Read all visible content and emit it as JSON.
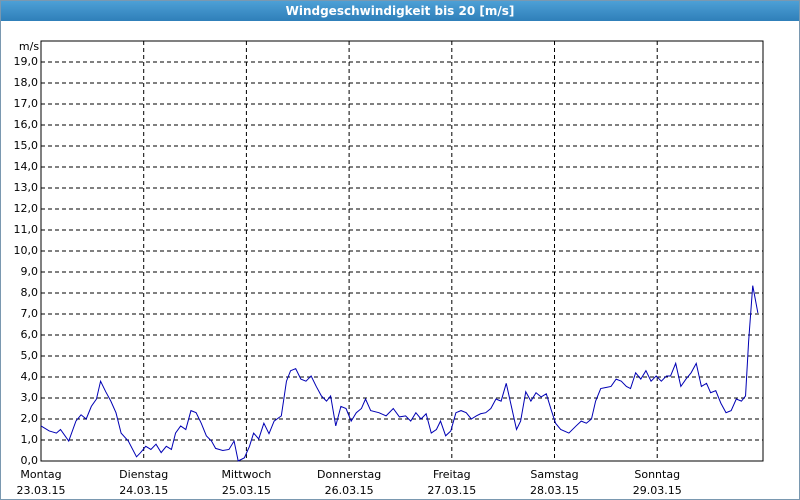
{
  "chart_data": {
    "type": "line",
    "title": "Windgeschwindigkeit bis 20 [m/s]",
    "y_unit": "m/s",
    "xlim": [
      0,
      7.03
    ],
    "ylim": [
      0,
      20
    ],
    "xticks": [
      {
        "value": 0,
        "label": "Montag",
        "date": "23.03.15"
      },
      {
        "value": 1,
        "label": "Dienstag",
        "date": "24.03.15"
      },
      {
        "value": 2,
        "label": "Mittwoch",
        "date": "25.03.15"
      },
      {
        "value": 3,
        "label": "Donnerstag",
        "date": "26.03.15"
      },
      {
        "value": 4,
        "label": "Freitag",
        "date": "27.03.15"
      },
      {
        "value": 5,
        "label": "Samstag",
        "date": "28.03.15"
      },
      {
        "value": 6,
        "label": "Sonntag",
        "date": "29.03.15"
      }
    ],
    "yticks": [
      {
        "value": 0,
        "label": "0,0"
      },
      {
        "value": 1,
        "label": "1,0"
      },
      {
        "value": 2,
        "label": "2,0"
      },
      {
        "value": 3,
        "label": "3,0"
      },
      {
        "value": 4,
        "label": "4,0"
      },
      {
        "value": 5,
        "label": "5,0"
      },
      {
        "value": 6,
        "label": "6,0"
      },
      {
        "value": 7,
        "label": "7,0"
      },
      {
        "value": 8,
        "label": "8,0"
      },
      {
        "value": 9,
        "label": "9,0"
      },
      {
        "value": 10,
        "label": "10,0"
      },
      {
        "value": 11,
        "label": "11,0"
      },
      {
        "value": 12,
        "label": "12,0"
      },
      {
        "value": 13,
        "label": "13,0"
      },
      {
        "value": 14,
        "label": "14,0"
      },
      {
        "value": 15,
        "label": "15,0"
      },
      {
        "value": 16,
        "label": "16,0"
      },
      {
        "value": 17,
        "label": "17,0"
      },
      {
        "value": 18,
        "label": "18,0"
      },
      {
        "value": 19,
        "label": "19,0"
      }
    ],
    "grid": true,
    "series": [
      {
        "color": "#0000b4",
        "x": [
          0,
          0.08,
          0.15,
          0.19,
          0.27,
          0.34,
          0.39,
          0.44,
          0.49,
          0.54,
          0.58,
          0.63,
          0.68,
          0.73,
          0.78,
          0.85,
          0.93,
          0.97,
          1.02,
          1.07,
          1.12,
          1.17,
          1.22,
          1.27,
          1.31,
          1.36,
          1.41,
          1.46,
          1.51,
          1.56,
          1.61,
          1.66,
          1.7,
          1.77,
          1.83,
          1.88,
          1.92,
          1.98,
          2.03,
          2.07,
          2.12,
          2.17,
          2.22,
          2.27,
          2.34,
          2.39,
          2.43,
          2.48,
          2.53,
          2.58,
          2.63,
          2.68,
          2.73,
          2.78,
          2.82,
          2.87,
          2.92,
          2.97,
          3.02,
          3.07,
          3.12,
          3.16,
          3.21,
          3.29,
          3.36,
          3.43,
          3.49,
          3.55,
          3.6,
          3.65,
          3.7,
          3.75,
          3.8,
          3.85,
          3.89,
          3.94,
          3.99,
          4.04,
          4.09,
          4.14,
          4.19,
          4.24,
          4.28,
          4.33,
          4.38,
          4.43,
          4.48,
          4.53,
          4.58,
          4.63,
          4.67,
          4.72,
          4.77,
          4.82,
          4.87,
          4.92,
          4.97,
          5.01,
          5.06,
          5.14,
          5.21,
          5.26,
          5.31,
          5.36,
          5.4,
          5.45,
          5.5,
          5.55,
          5.6,
          5.65,
          5.7,
          5.74,
          5.79,
          5.84,
          5.89,
          5.94,
          5.99,
          6.04,
          6.09,
          6.13,
          6.18,
          6.23,
          6.28,
          6.33,
          6.38,
          6.43,
          6.48,
          6.52,
          6.57,
          6.62,
          6.67,
          6.72,
          6.77,
          6.82,
          6.86,
          6.89,
          6.93,
          6.98
        ],
        "values": [
          1.67,
          1.43,
          1.33,
          1.5,
          0.95,
          1.9,
          2.2,
          2.0,
          2.6,
          2.95,
          3.8,
          3.3,
          2.85,
          2.3,
          1.33,
          0.95,
          0.2,
          0.4,
          0.7,
          0.55,
          0.8,
          0.4,
          0.7,
          0.55,
          1.33,
          1.67,
          1.5,
          2.4,
          2.3,
          1.8,
          1.2,
          0.95,
          0.6,
          0.5,
          0.55,
          0.95,
          0,
          0.15,
          0.7,
          1.33,
          1.05,
          1.8,
          1.3,
          1.9,
          2.15,
          3.8,
          4.3,
          4.4,
          3.9,
          3.8,
          4.05,
          3.55,
          3.1,
          2.85,
          3.1,
          1.67,
          2.6,
          2.5,
          1.9,
          2.3,
          2.5,
          2.95,
          2.4,
          2.3,
          2.15,
          2.5,
          2.1,
          2.15,
          1.9,
          2.3,
          2.0,
          2.25,
          1.33,
          1.5,
          1.9,
          1.2,
          1.43,
          2.3,
          2.4,
          2.3,
          2.0,
          2.15,
          2.25,
          2.3,
          2.5,
          2.95,
          2.85,
          3.7,
          2.6,
          1.5,
          1.9,
          3.3,
          2.85,
          3.25,
          3.05,
          3.2,
          2.4,
          1.8,
          1.5,
          1.33,
          1.67,
          1.9,
          1.8,
          2.0,
          2.85,
          3.45,
          3.5,
          3.55,
          3.9,
          3.8,
          3.55,
          3.45,
          4.2,
          3.9,
          4.3,
          3.8,
          4.05,
          3.8,
          4.05,
          4.05,
          4.65,
          3.55,
          3.9,
          4.2,
          4.65,
          3.55,
          3.7,
          3.25,
          3.35,
          2.75,
          2.3,
          2.4,
          2.95,
          2.85,
          3.1,
          5.7,
          8.35,
          7.05
        ]
      }
    ]
  }
}
